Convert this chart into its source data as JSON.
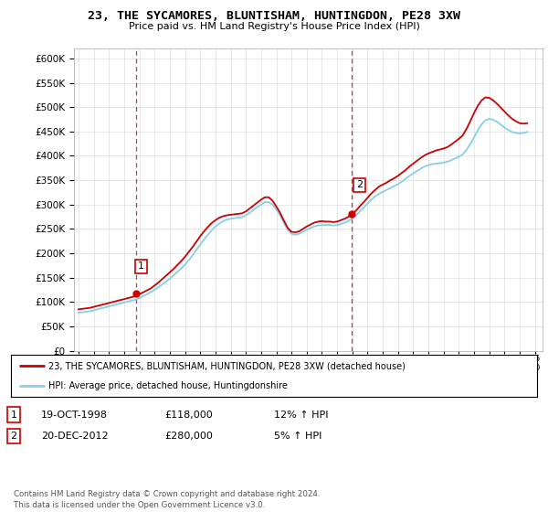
{
  "title": "23, THE SYCAMORES, BLUNTISHAM, HUNTINGDON, PE28 3XW",
  "subtitle": "Price paid vs. HM Land Registry's House Price Index (HPI)",
  "yticks": [
    0,
    50000,
    100000,
    150000,
    200000,
    250000,
    300000,
    350000,
    400000,
    450000,
    500000,
    550000,
    600000
  ],
  "ylim": [
    0,
    620000
  ],
  "xlim_start": 1994.7,
  "xlim_end": 2025.5,
  "background_color": "#ffffff",
  "grid_color": "#dddddd",
  "sale1_x": 1998.8,
  "sale1_y": 118000,
  "sale1_label": "1",
  "sale2_x": 2012.97,
  "sale2_y": 280000,
  "sale2_label": "2",
  "legend_entry1": "23, THE SYCAMORES, BLUNTISHAM, HUNTINGDON, PE28 3XW (detached house)",
  "legend_entry2": "HPI: Average price, detached house, Huntingdonshire",
  "table_row1": [
    "1",
    "19-OCT-1998",
    "£118,000",
    "12% ↑ HPI"
  ],
  "table_row2": [
    "2",
    "20-DEC-2012",
    "£280,000",
    "5% ↑ HPI"
  ],
  "footer": "Contains HM Land Registry data © Crown copyright and database right 2024.\nThis data is licensed under the Open Government Licence v3.0.",
  "red_color": "#cc0000",
  "blue_color": "#87CEEB",
  "vline_color": "#cc0000",
  "hpi_years": [
    1995,
    1995.25,
    1995.5,
    1995.75,
    1996,
    1996.25,
    1996.5,
    1996.75,
    1997,
    1997.25,
    1997.5,
    1997.75,
    1998,
    1998.25,
    1998.5,
    1998.75,
    1999,
    1999.25,
    1999.5,
    1999.75,
    2000,
    2000.25,
    2000.5,
    2000.75,
    2001,
    2001.25,
    2001.5,
    2001.75,
    2002,
    2002.25,
    2002.5,
    2002.75,
    2003,
    2003.25,
    2003.5,
    2003.75,
    2004,
    2004.25,
    2004.5,
    2004.75,
    2005,
    2005.25,
    2005.5,
    2005.75,
    2006,
    2006.25,
    2006.5,
    2006.75,
    2007,
    2007.25,
    2007.5,
    2007.75,
    2008,
    2008.25,
    2008.5,
    2008.75,
    2009,
    2009.25,
    2009.5,
    2009.75,
    2010,
    2010.25,
    2010.5,
    2010.75,
    2011,
    2011.25,
    2011.5,
    2011.75,
    2012,
    2012.25,
    2012.5,
    2012.75,
    2013,
    2013.25,
    2013.5,
    2013.75,
    2014,
    2014.25,
    2014.5,
    2014.75,
    2015,
    2015.25,
    2015.5,
    2015.75,
    2016,
    2016.25,
    2016.5,
    2016.75,
    2017,
    2017.25,
    2017.5,
    2017.75,
    2018,
    2018.25,
    2018.5,
    2018.75,
    2019,
    2019.25,
    2019.5,
    2019.75,
    2020,
    2020.25,
    2020.5,
    2020.75,
    2021,
    2021.25,
    2021.5,
    2021.75,
    2022,
    2022.25,
    2022.5,
    2022.75,
    2023,
    2023.25,
    2023.5,
    2023.75,
    2024,
    2024.25,
    2024.5
  ],
  "hpi_values": [
    78000,
    79000,
    80000,
    81000,
    83000,
    85000,
    87000,
    89000,
    91000,
    93000,
    95000,
    97000,
    99000,
    101000,
    103000,
    105000,
    108000,
    112000,
    116000,
    120000,
    125000,
    130000,
    136000,
    142000,
    148000,
    155000,
    162000,
    169000,
    177000,
    186000,
    196000,
    207000,
    218000,
    228000,
    238000,
    247000,
    255000,
    261000,
    266000,
    269000,
    271000,
    272000,
    273000,
    274000,
    278000,
    283000,
    289000,
    295000,
    300000,
    305000,
    305000,
    300000,
    290000,
    278000,
    262000,
    248000,
    240000,
    238000,
    240000,
    244000,
    248000,
    252000,
    255000,
    257000,
    258000,
    258000,
    258000,
    257000,
    258000,
    260000,
    263000,
    266000,
    272000,
    278000,
    286000,
    294000,
    302000,
    310000,
    317000,
    322000,
    326000,
    330000,
    334000,
    338000,
    342000,
    347000,
    353000,
    359000,
    364000,
    369000,
    374000,
    378000,
    381000,
    383000,
    384000,
    385000,
    386000,
    388000,
    391000,
    395000,
    398000,
    403000,
    412000,
    424000,
    438000,
    453000,
    465000,
    473000,
    476000,
    474000,
    470000,
    464000,
    458000,
    453000,
    449000,
    447000,
    446000,
    447000,
    449000
  ],
  "price_years": [
    1995,
    1995.25,
    1995.5,
    1995.75,
    1996,
    1996.25,
    1996.5,
    1996.75,
    1997,
    1997.25,
    1997.5,
    1997.75,
    1998,
    1998.25,
    1998.5,
    1998.75,
    1999,
    1999.25,
    1999.5,
    1999.75,
    2000,
    2000.25,
    2000.5,
    2000.75,
    2001,
    2001.25,
    2001.5,
    2001.75,
    2002,
    2002.25,
    2002.5,
    2002.75,
    2003,
    2003.25,
    2003.5,
    2003.75,
    2004,
    2004.25,
    2004.5,
    2004.75,
    2005,
    2005.25,
    2005.5,
    2005.75,
    2006,
    2006.25,
    2006.5,
    2006.75,
    2007,
    2007.25,
    2007.5,
    2007.75,
    2008,
    2008.25,
    2008.5,
    2008.75,
    2009,
    2009.25,
    2009.5,
    2009.75,
    2010,
    2010.25,
    2010.5,
    2010.75,
    2011,
    2011.25,
    2011.5,
    2011.75,
    2012,
    2012.25,
    2012.5,
    2012.75,
    2013,
    2013.25,
    2013.5,
    2013.75,
    2014,
    2014.25,
    2014.5,
    2014.75,
    2015,
    2015.25,
    2015.5,
    2015.75,
    2016,
    2016.25,
    2016.5,
    2016.75,
    2017,
    2017.25,
    2017.5,
    2017.75,
    2018,
    2018.25,
    2018.5,
    2018.75,
    2019,
    2019.25,
    2019.5,
    2019.75,
    2020,
    2020.25,
    2020.5,
    2020.75,
    2021,
    2021.25,
    2021.5,
    2021.75,
    2022,
    2022.25,
    2022.5,
    2022.75,
    2023,
    2023.25,
    2023.5,
    2023.75,
    2024,
    2024.25,
    2024.5
  ],
  "price_values": [
    85000,
    86000,
    87000,
    88000,
    90000,
    92000,
    94000,
    96000,
    98000,
    100000,
    102000,
    104000,
    106000,
    108000,
    110000,
    112000,
    116000,
    120000,
    124000,
    128000,
    134000,
    140000,
    147000,
    154000,
    161000,
    168000,
    176000,
    184000,
    193000,
    203000,
    213000,
    224000,
    235000,
    245000,
    254000,
    262000,
    268000,
    273000,
    276000,
    278000,
    279000,
    280000,
    281000,
    282000,
    286000,
    292000,
    298000,
    304000,
    310000,
    315000,
    315000,
    308000,
    296000,
    283000,
    267000,
    252000,
    244000,
    243000,
    245000,
    250000,
    255000,
    259000,
    263000,
    265000,
    266000,
    265000,
    265000,
    264000,
    265000,
    268000,
    271000,
    275000,
    281000,
    288000,
    297000,
    305000,
    314000,
    323000,
    330000,
    337000,
    341000,
    345000,
    350000,
    354000,
    359000,
    365000,
    371000,
    378000,
    384000,
    390000,
    396000,
    401000,
    405000,
    408000,
    411000,
    413000,
    415000,
    418000,
    423000,
    429000,
    435000,
    442000,
    455000,
    471000,
    488000,
    503000,
    514000,
    520000,
    519000,
    514000,
    507000,
    499000,
    491000,
    483000,
    476000,
    471000,
    467000,
    466000,
    467000
  ]
}
